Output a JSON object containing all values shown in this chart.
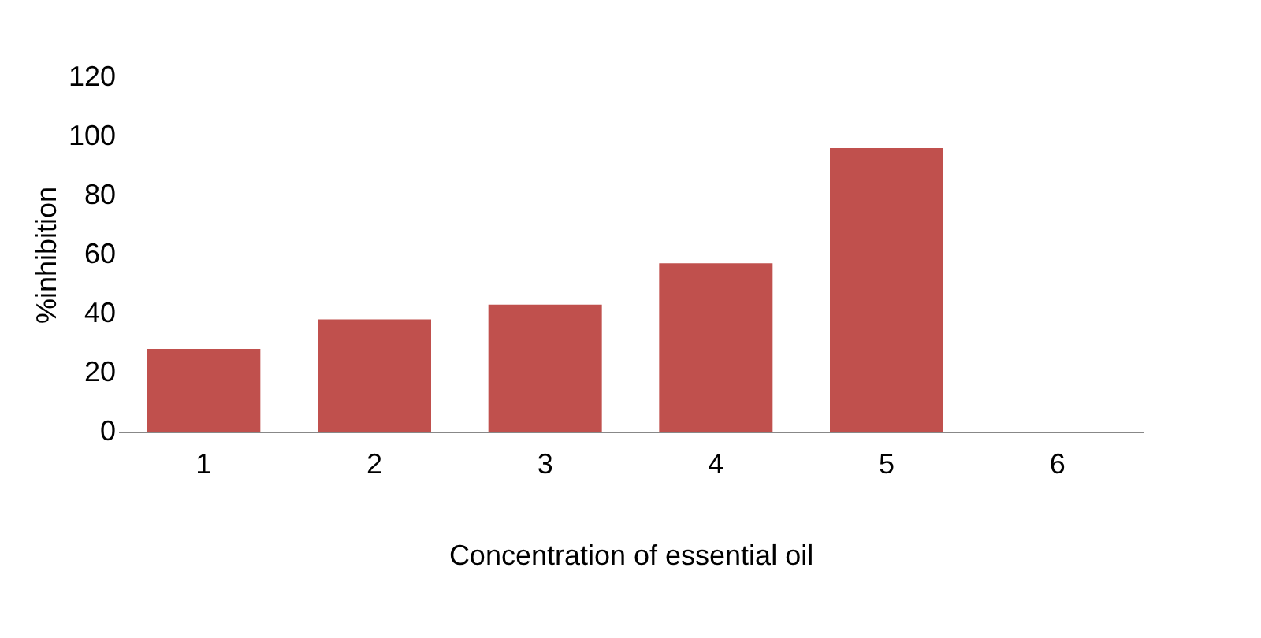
{
  "chart_data": {
    "type": "bar",
    "xlabel": "Concentration of essential oil",
    "ylabel": "%inhibition",
    "categories": [
      "1",
      "2",
      "3",
      "4",
      "5",
      "6"
    ],
    "values": [
      28,
      38,
      43,
      57,
      96,
      null
    ],
    "color": "#c0504d",
    "ylim": [
      0,
      120
    ],
    "yticks": [
      0,
      20,
      40,
      60,
      80,
      100,
      120
    ],
    "grid": false
  }
}
